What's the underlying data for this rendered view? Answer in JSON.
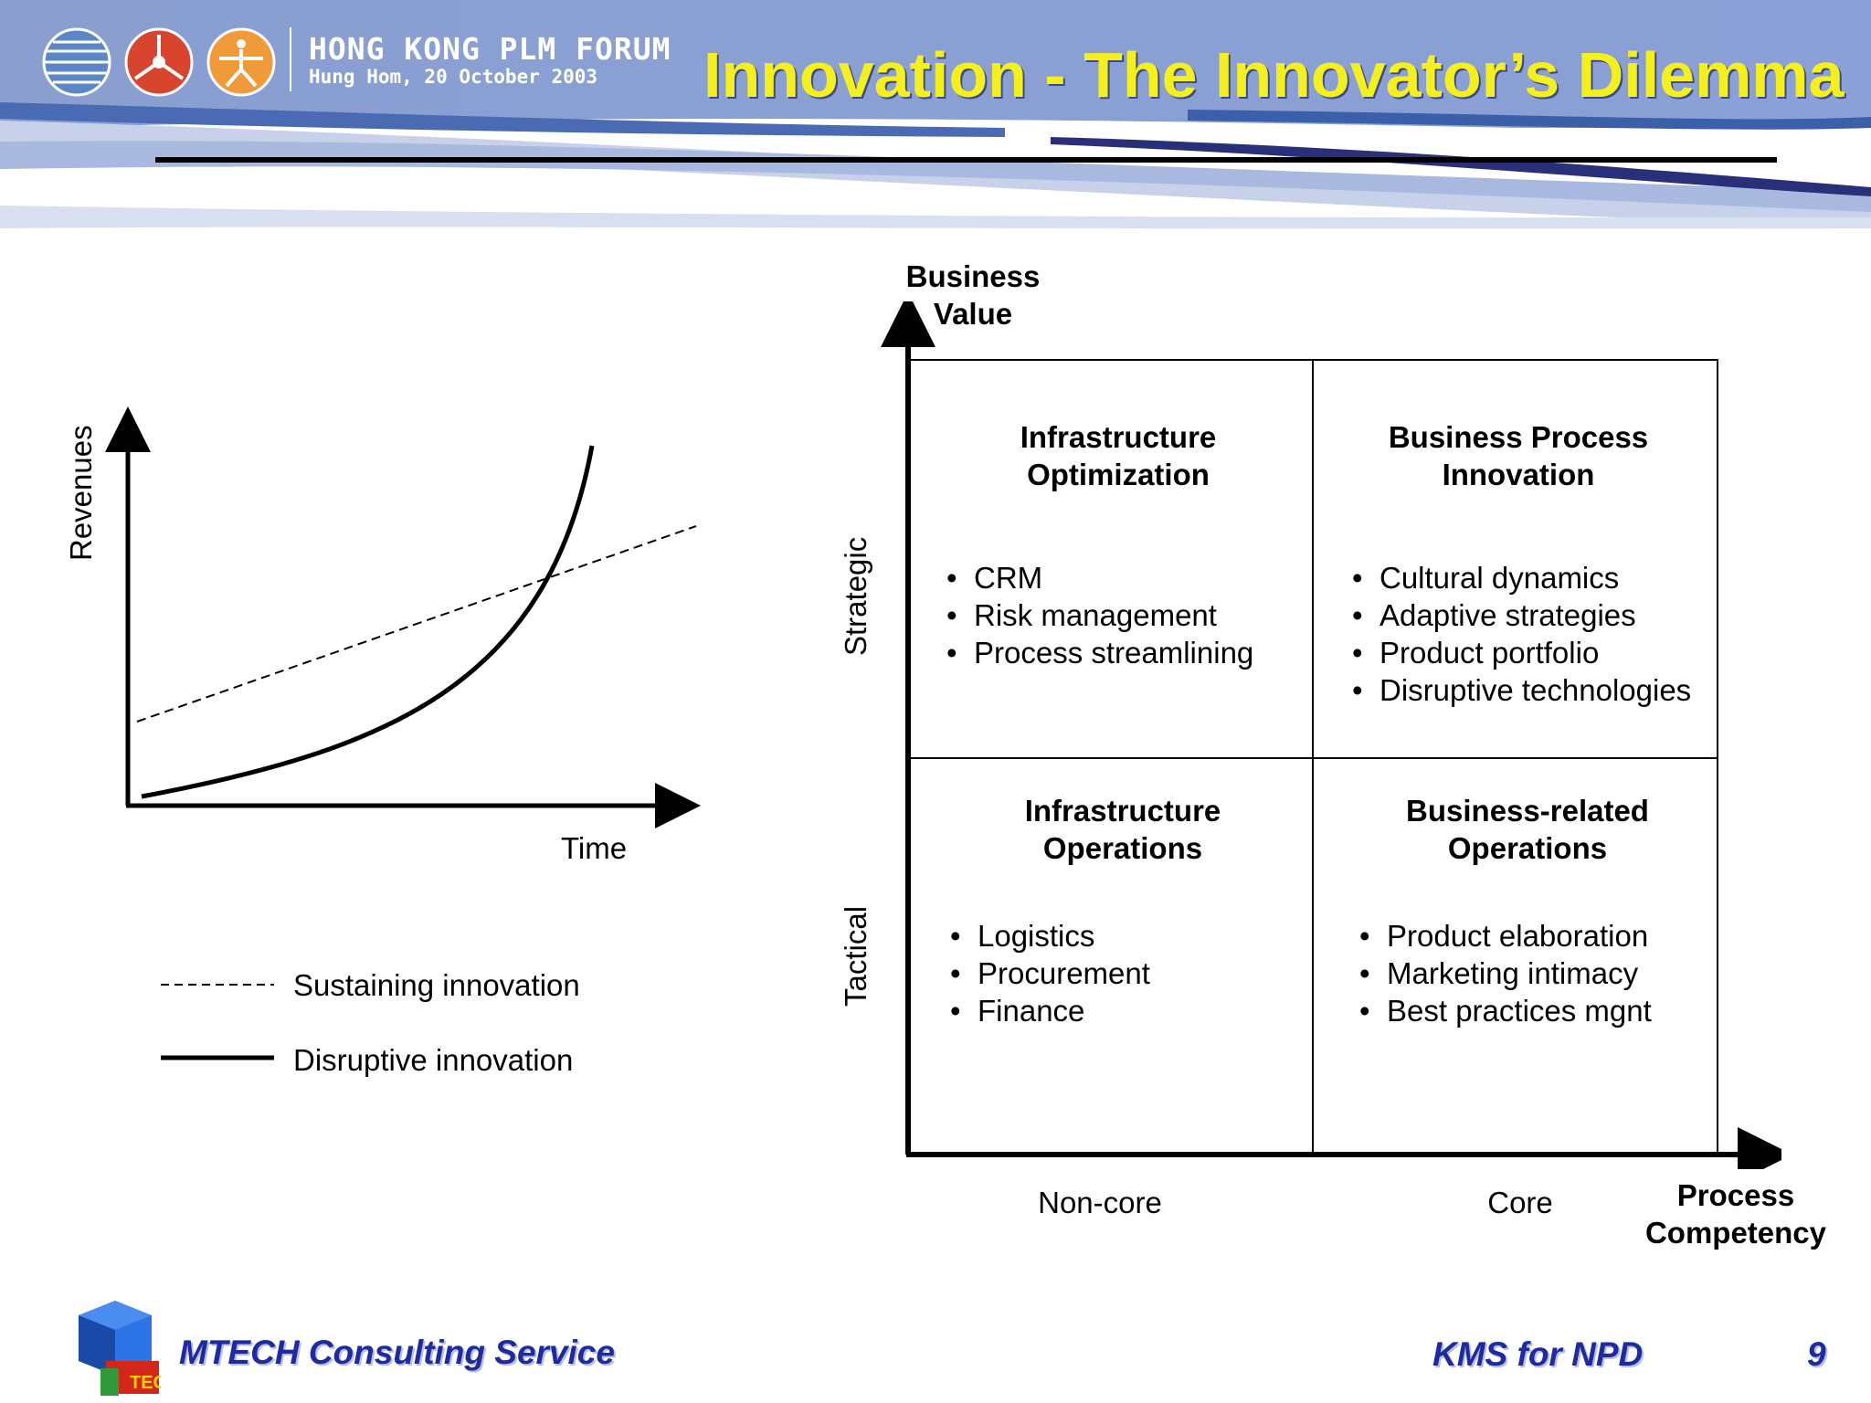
{
  "header": {
    "forum_title": "HONG KONG PLM FORUM",
    "forum_subtitle": "Hung Hom, 20 October 2003",
    "slide_title": "Innovation - The Innovator’s Dilemma",
    "title_color": "#f5ef1c",
    "logo_icons": [
      "globe-logo-icon",
      "red-network-logo-icon",
      "orange-figure-logo-icon"
    ]
  },
  "left_chart": {
    "y_axis_label": "Revenues",
    "x_axis_label": "Time",
    "legend": [
      {
        "style": "dashed",
        "label": "Sustaining innovation"
      },
      {
        "style": "solid",
        "label": "Disruptive innovation"
      }
    ]
  },
  "matrix": {
    "y_axis_label_line1": "Business",
    "y_axis_label_line2": "Value",
    "x_axis_label_line1": "Process",
    "x_axis_label_line2": "Competency",
    "row_labels": {
      "top": "Strategic",
      "bottom": "Tactical"
    },
    "col_labels": {
      "left": "Non-core",
      "right": "Core"
    },
    "quadrants": {
      "top_left": {
        "title_line1": "Infrastructure",
        "title_line2": "Optimization",
        "items": [
          "CRM",
          "Risk management",
          "Process streamlining"
        ]
      },
      "top_right": {
        "title_line1": "Business Process",
        "title_line2": "Innovation",
        "items": [
          "Cultural dynamics",
          "Adaptive strategies",
          "Product portfolio",
          "Disruptive technologies"
        ]
      },
      "bottom_left": {
        "title_line1": "Infrastructure",
        "title_line2": "Operations",
        "items": [
          "Logistics",
          "Procurement",
          "Finance"
        ]
      },
      "bottom_right": {
        "title_line1": "Business-related",
        "title_line2": "Operations",
        "items": [
          "Product elaboration",
          "Marketing intimacy",
          "Best practices mgnt"
        ]
      }
    }
  },
  "footer": {
    "company": "MTECH Consulting Service",
    "logo_letters": "TECH",
    "topic": "KMS for NPD",
    "page_number": "9",
    "text_color": "#1d2aa0"
  }
}
